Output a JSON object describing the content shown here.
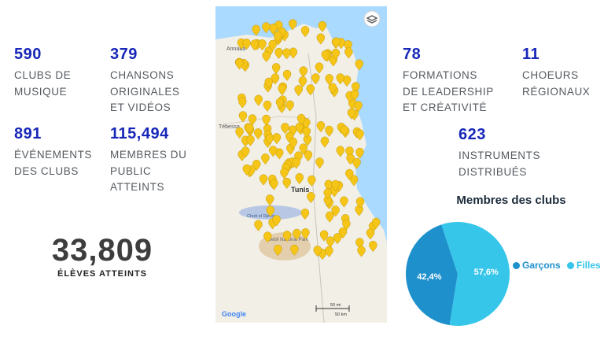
{
  "stats": {
    "clubs": {
      "value": "590",
      "label": "CLUBS DE\nMUSIQUE"
    },
    "songs": {
      "value": "379",
      "label": "CHANSONS\nORIGINALES\nET VIDÉOS"
    },
    "events": {
      "value": "891",
      "label": "ÉVÉNEMENTS\nDES CLUBS"
    },
    "public": {
      "value": "115,494",
      "label": "MEMBRES DU\nPUBLIC\nATTEINTS"
    },
    "trainings": {
      "value": "78",
      "label": "FORMATIONS\nDE LEADERSHIP\nET CRÉATIVITÉ"
    },
    "choirs": {
      "value": "11",
      "label": "CHOEURS\nRÉGIONAUX"
    },
    "instruments": {
      "value": "623",
      "label": "INSTRUMENTS\nDISTRIBUÉS"
    }
  },
  "students": {
    "value": "33,809",
    "label": "ÉLÈVES ATTEINTS"
  },
  "map": {
    "labels": {
      "annaba": "Annaba",
      "tebessa": "Tébessa",
      "tunis": "Tunis",
      "chott": "Chott el Djerid",
      "jebil": "Jebil National Park",
      "google": "Google"
    },
    "scale": {
      "mi": "50 mi",
      "km": "50 km"
    },
    "marker_color": "#f5c518",
    "icons": [
      "layers-icon",
      "map-pin-icon"
    ]
  },
  "chart_data": {
    "type": "pie",
    "title": "Membres des clubs",
    "series": [
      {
        "name": "Garçons",
        "value": 42.4,
        "label": "42,4%",
        "color": "#1e90cc"
      },
      {
        "name": "Filles",
        "value": 57.6,
        "label": "57,6%",
        "color": "#35c6ea"
      }
    ],
    "legend_position": "right"
  }
}
